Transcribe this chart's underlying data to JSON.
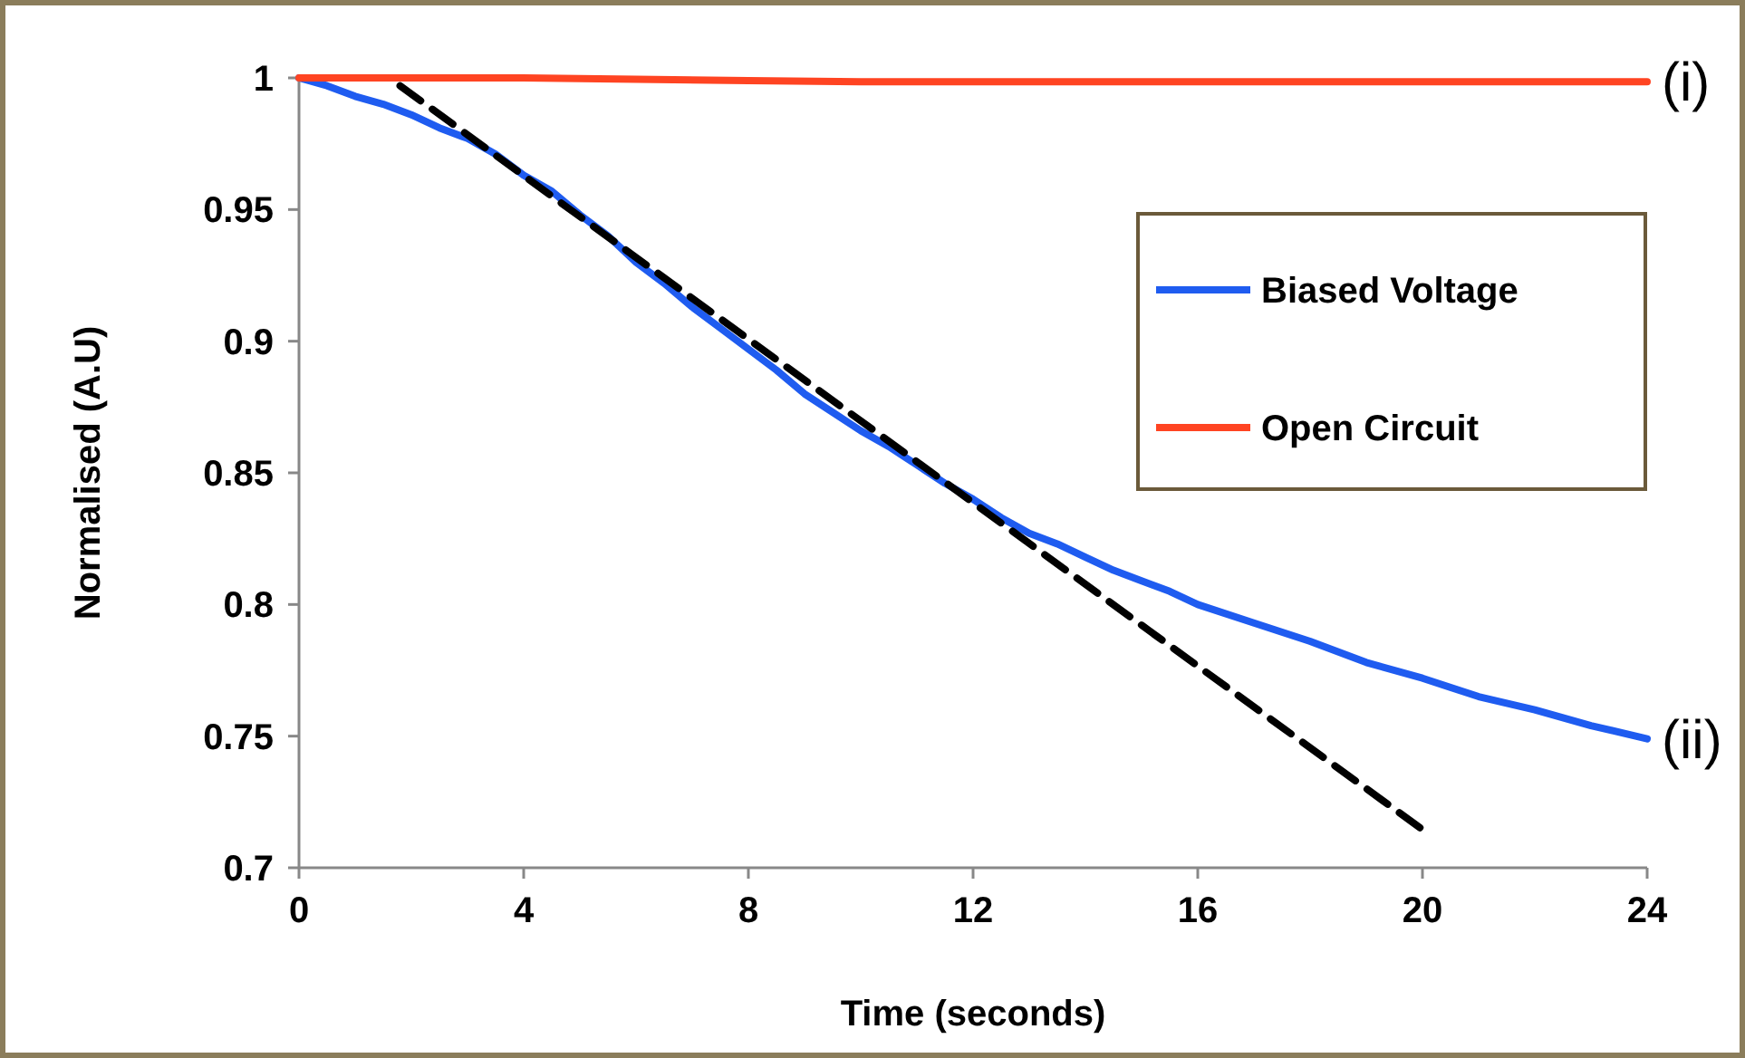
{
  "chart_data": {
    "type": "line",
    "xlabel": "Time (seconds)",
    "ylabel": "Normalised (A.U)",
    "xlim": [
      0,
      24
    ],
    "xticks": [
      0,
      4,
      8,
      12,
      16,
      20,
      24
    ],
    "ylim": [
      0.7,
      1
    ],
    "yticks": [
      0.7,
      0.75,
      0.8,
      0.85,
      0.9,
      0.95,
      1
    ],
    "grid": false,
    "legend": "right",
    "line_style": "solid",
    "marker": "none",
    "series": [
      {
        "name": "Biased Voltage",
        "color": "#1f5cf0",
        "x": [
          0,
          0.5,
          1,
          1.5,
          2,
          2.5,
          3,
          3.5,
          4,
          4.5,
          5,
          5.5,
          6,
          6.5,
          7,
          7.5,
          8,
          8.5,
          9,
          9.5,
          10,
          10.5,
          11,
          11.5,
          12,
          12.5,
          13,
          13.5,
          14,
          14.5,
          15,
          15.5,
          16,
          17,
          18,
          19,
          20,
          21,
          22,
          23,
          24
        ],
        "values": [
          1,
          0.997,
          0.993,
          0.99,
          0.986,
          0.981,
          0.977,
          0.971,
          0.963,
          0.957,
          0.948,
          0.94,
          0.93,
          0.922,
          0.913,
          0.905,
          0.897,
          0.889,
          0.88,
          0.873,
          0.866,
          0.86,
          0.853,
          0.846,
          0.84,
          0.833,
          0.827,
          0.823,
          0.818,
          0.813,
          0.809,
          0.805,
          0.8,
          0.793,
          0.786,
          0.778,
          0.772,
          0.765,
          0.76,
          0.754,
          0.749
        ]
      },
      {
        "name": "Open Circuit",
        "color": "#ff4422",
        "x": [
          0,
          4,
          6,
          8,
          10,
          12,
          16,
          20,
          24
        ],
        "values": [
          1,
          1,
          0.9995,
          0.999,
          0.9985,
          0.9985,
          0.9985,
          0.9985,
          0.9985
        ]
      },
      {
        "type": "line",
        "color": "#000000",
        "line_style": "dashed",
        "x": [
          1.8,
          20.1
        ],
        "values": [
          0.997,
          0.713
        ]
      }
    ],
    "annotations": [
      {
        "text": "(i)",
        "x": 24,
        "y": 0.9985
      },
      {
        "text": "(ii)",
        "x": 24,
        "y": 0.749
      }
    ]
  }
}
